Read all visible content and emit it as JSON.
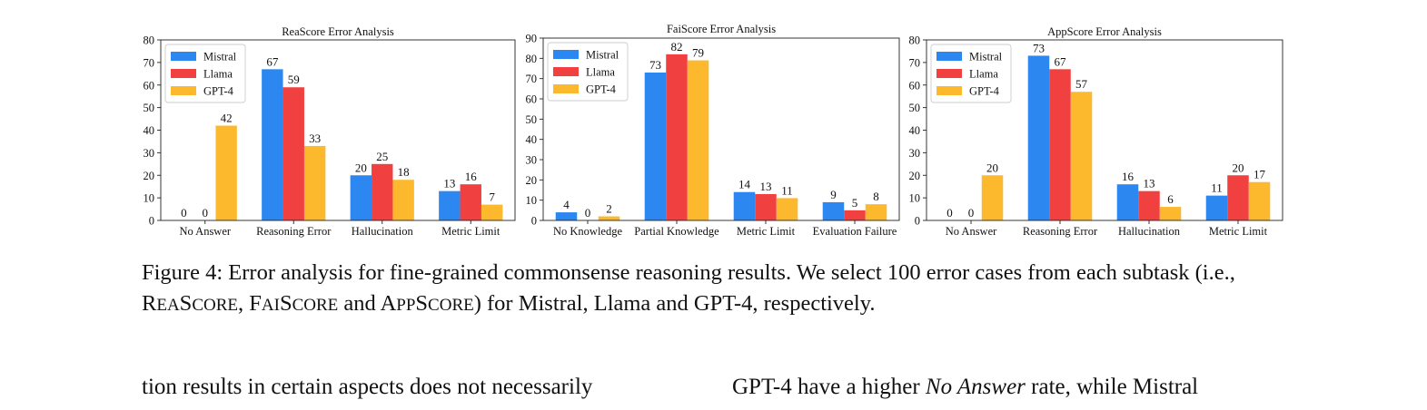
{
  "colors": {
    "Mistral": "#2d87f0",
    "Llama": "#f04040",
    "GPT-4": "#fdb92e"
  },
  "chart_data": [
    {
      "type": "bar",
      "title": "ReaScore Error Analysis",
      "categories": [
        "No Answer",
        "Reasoning Error",
        "Hallucination",
        "Metric Limit"
      ],
      "series": [
        {
          "name": "Mistral",
          "values": [
            0,
            67,
            20,
            13
          ]
        },
        {
          "name": "Llama",
          "values": [
            0,
            59,
            25,
            16
          ]
        },
        {
          "name": "GPT-4",
          "values": [
            42,
            33,
            18,
            7
          ]
        }
      ],
      "ylim": [
        0,
        80
      ],
      "yticks": [
        0,
        10,
        20,
        30,
        40,
        50,
        60,
        70,
        80
      ],
      "legend": "top-left",
      "grid": false
    },
    {
      "type": "bar",
      "title": "FaiScore Error Analysis",
      "categories": [
        "No Knowledge",
        "Partial Knowledge",
        "Metric Limit",
        "Evaluation Failure"
      ],
      "series": [
        {
          "name": "Mistral",
          "values": [
            4,
            73,
            14,
            9
          ]
        },
        {
          "name": "Llama",
          "values": [
            0,
            82,
            13,
            5
          ]
        },
        {
          "name": "GPT-4",
          "values": [
            2,
            79,
            11,
            8
          ]
        }
      ],
      "ylim": [
        0,
        90
      ],
      "yticks": [
        0,
        10,
        20,
        30,
        40,
        50,
        60,
        70,
        80,
        90
      ],
      "legend": "top-left",
      "grid": false
    },
    {
      "type": "bar",
      "title": "AppScore Error Analysis",
      "categories": [
        "No Answer",
        "Reasoning Error",
        "Hallucination",
        "Metric Limit"
      ],
      "series": [
        {
          "name": "Mistral",
          "values": [
            0,
            73,
            16,
            11
          ]
        },
        {
          "name": "Llama",
          "values": [
            0,
            67,
            13,
            20
          ]
        },
        {
          "name": "GPT-4",
          "values": [
            20,
            57,
            6,
            17
          ]
        }
      ],
      "ylim": [
        0,
        80
      ],
      "yticks": [
        0,
        10,
        20,
        30,
        40,
        50,
        60,
        70,
        80
      ],
      "legend": "top-left",
      "grid": false
    }
  ],
  "caption": {
    "label": "Figure 4:",
    "text1": "Error analysis for fine-grained commonsense reasoning results. We select 100 error cases from each subtask (i.e., ",
    "s1_first": "R",
    "s1_rest": "EA",
    "s1_first2": "S",
    "s1_rest2": "CORE",
    "sep1": ", ",
    "s2_first": "F",
    "s2_rest": "AI",
    "s2_first2": "S",
    "s2_rest2": "CORE",
    "sep2": " and ",
    "s3_first": "A",
    "s3_rest": "PP",
    "s3_first2": "S",
    "s3_rest2": "CORE",
    "text2": ") for Mistral, Llama and GPT-4, respectively."
  },
  "body": {
    "left": "tion results in certain aspects does not necessarily",
    "right_before": "GPT-4 have a higher ",
    "right_italic": "No Answer",
    "right_after": " rate, while Mistral"
  }
}
